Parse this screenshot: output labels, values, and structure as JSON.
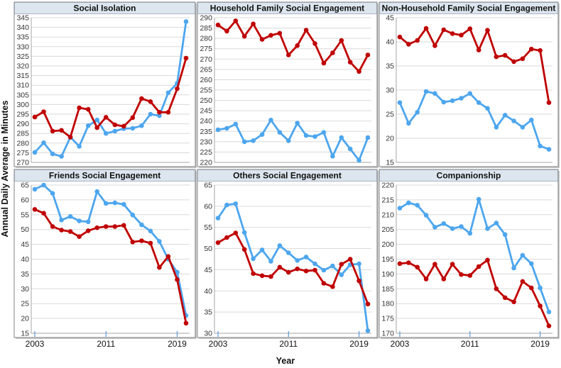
{
  "chart_data": {
    "type": "line",
    "ylabel": "Annual Daily Average in Minutes",
    "xlabel": "Year",
    "x": [
      2003,
      2004,
      2005,
      2006,
      2007,
      2008,
      2009,
      2010,
      2011,
      2012,
      2013,
      2014,
      2015,
      2016,
      2017,
      2018,
      2019,
      2020
    ],
    "x_ticks": [
      2003,
      2011,
      2019
    ],
    "x_tick_labels": [
      "2003",
      "2011",
      "2019"
    ],
    "series_colors": [
      "#c00000",
      "#4da6ee"
    ],
    "grid": true,
    "panels": [
      {
        "title": "Social Isolation",
        "ylim": [
          270,
          345
        ],
        "ystep": 5,
        "series": [
          {
            "color": "#c00000",
            "values": [
              293.5,
              296.3,
              286.2,
              286.6,
              283.1,
              298.3,
              297.5,
              288.0,
              293.4,
              289.5,
              288.7,
              293.2,
              303.1,
              301.5,
              296.0,
              296.0,
              308.2,
              324.0
            ]
          },
          {
            "color": "#4da6ee",
            "values": [
              275.2,
              280.2,
              274.4,
              273.1,
              283.1,
              278.3,
              289.0,
              292.0,
              285.0,
              286.2,
              287.5,
              287.7,
              289.0,
              295.0,
              294.2,
              306.1,
              311.0,
              343.0
            ]
          }
        ]
      },
      {
        "title": "Household Family Social Engagement",
        "ylim": [
          220,
          290
        ],
        "ystep": 5,
        "series": [
          {
            "color": "#c00000",
            "values": [
              286.5,
              283.5,
              288.5,
              281.0,
              287.0,
              279.5,
              281.5,
              282.5,
              272.0,
              276.5,
              284.0,
              277.5,
              268.0,
              273.0,
              279.0,
              268.5,
              264.0,
              272.0
            ]
          },
          {
            "color": "#4da6ee",
            "values": [
              235.8,
              236.5,
              238.5,
              230.0,
              230.5,
              233.5,
              240.5,
              234.5,
              230.5,
              239.0,
              233.0,
              232.5,
              234.5,
              223.0,
              232.0,
              226.5,
              221.0,
              232.0
            ]
          }
        ]
      },
      {
        "title": "Non-Household Family Social Engagement",
        "ylim": [
          15,
          45
        ],
        "ystep": 5,
        "series": [
          {
            "color": "#c00000",
            "values": [
              41.0,
              39.5,
              40.3,
              42.8,
              39.2,
              42.5,
              41.7,
              41.4,
              42.7,
              38.3,
              42.4,
              36.9,
              37.2,
              35.9,
              36.5,
              38.5,
              38.2,
              27.4
            ]
          },
          {
            "color": "#4da6ee",
            "values": [
              27.4,
              23.1,
              25.4,
              29.7,
              29.3,
              27.5,
              27.8,
              28.3,
              29.3,
              27.4,
              26.2,
              22.3,
              24.8,
              23.6,
              22.3,
              23.8,
              18.4,
              17.7
            ]
          }
        ]
      },
      {
        "title": "Friends Social Engagement",
        "ylim": [
          15,
          65
        ],
        "ystep": 5,
        "series": [
          {
            "color": "#c00000",
            "values": [
              56.8,
              55.5,
              51.0,
              49.8,
              49.3,
              47.6,
              49.6,
              50.6,
              51.0,
              51.0,
              51.4,
              45.8,
              46.2,
              45.4,
              37.2,
              40.9,
              33.1,
              18.4
            ]
          },
          {
            "color": "#4da6ee",
            "values": [
              63.6,
              65.0,
              62.2,
              53.2,
              54.4,
              52.9,
              52.6,
              62.8,
              58.8,
              59.0,
              58.5,
              54.9,
              51.6,
              49.5,
              46.0,
              40.0,
              35.6,
              21.0
            ]
          }
        ]
      },
      {
        "title": "Others Social Engagement",
        "ylim": [
          30,
          65
        ],
        "ystep": 5,
        "series": [
          {
            "color": "#c00000",
            "values": [
              51.4,
              52.6,
              53.7,
              49.8,
              44.1,
              43.6,
              43.4,
              45.6,
              44.4,
              45.2,
              44.7,
              44.9,
              41.8,
              41.0,
              46.3,
              47.5,
              42.4,
              36.9
            ]
          },
          {
            "color": "#4da6ee",
            "values": [
              57.2,
              60.3,
              60.6,
              53.8,
              47.6,
              49.7,
              47.0,
              50.7,
              49.0,
              47.2,
              48.0,
              46.4,
              44.9,
              45.9,
              43.8,
              46.2,
              46.4,
              30.6
            ]
          }
        ]
      },
      {
        "title": "Companionship",
        "ylim": [
          170,
          220
        ],
        "ystep": 5,
        "series": [
          {
            "color": "#c00000",
            "values": [
              193.5,
              193.8,
              192.3,
              188.3,
              193.3,
              188.3,
              193.3,
              189.8,
              189.5,
              192.5,
              194.7,
              185.0,
              182.0,
              180.6,
              187.5,
              185.3,
              179.2,
              172.5
            ]
          },
          {
            "color": "#4da6ee",
            "values": [
              212.2,
              214.0,
              213.2,
              209.8,
              205.8,
              207.0,
              205.3,
              206.0,
              203.7,
              215.2,
              205.3,
              207.2,
              203.3,
              192.0,
              196.3,
              193.5,
              185.3,
              177.2
            ]
          }
        ]
      }
    ]
  }
}
